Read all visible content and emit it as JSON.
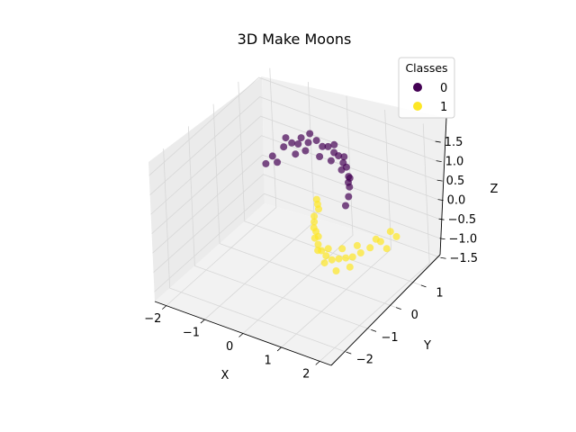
{
  "chart_data": {
    "type": "scatter",
    "projection": "3d",
    "title": "3D Make Moons",
    "xlabel": "X",
    "ylabel": "Y",
    "zlabel": "Z",
    "xlim": [
      -2.3,
      2.3
    ],
    "ylim": [
      -2.6,
      1.8
    ],
    "zlim": [
      -1.75,
      1.85
    ],
    "xticks": [
      "−2",
      "−1",
      "0",
      "1",
      "2"
    ],
    "yticks": [
      "−2",
      "−1",
      "0",
      "1"
    ],
    "zticks": [
      "−1.5",
      "−1.0",
      "−0.5",
      "0.0",
      "0.5",
      "1.0",
      "1.5"
    ],
    "grid": true,
    "legend": {
      "title": "Classes",
      "placement": "top-right",
      "entries": [
        {
          "label": "0",
          "color": "#440154"
        },
        {
          "label": "1",
          "color": "#fde725"
        }
      ]
    },
    "marker_alpha": 0.7,
    "series": [
      {
        "name": "0",
        "color": "#440154",
        "shape": "upper moon",
        "points": [
          [
            -1.0,
            0.3,
            0.8
          ],
          [
            -0.9,
            0.6,
            0.9
          ],
          [
            -0.75,
            0.7,
            1.0
          ],
          [
            -0.6,
            0.85,
            1.1
          ],
          [
            -0.45,
            0.9,
            1.0
          ],
          [
            -0.3,
            1.0,
            1.05
          ],
          [
            -0.15,
            1.0,
            0.95
          ],
          [
            0.0,
            1.0,
            1.0
          ],
          [
            0.15,
            1.0,
            0.9
          ],
          [
            0.3,
            0.95,
            0.9
          ],
          [
            0.45,
            0.9,
            0.8
          ],
          [
            0.6,
            0.8,
            0.8
          ],
          [
            0.75,
            0.65,
            0.7
          ],
          [
            0.9,
            0.45,
            0.6
          ],
          [
            1.0,
            0.25,
            0.5
          ],
          [
            -0.95,
            0.4,
            0.6
          ],
          [
            -0.7,
            0.75,
            0.7
          ],
          [
            -0.5,
            0.85,
            0.8
          ],
          [
            -0.2,
            0.95,
            0.7
          ],
          [
            0.1,
            0.95,
            0.7
          ],
          [
            0.4,
            0.9,
            0.6
          ],
          [
            0.7,
            0.7,
            0.5
          ],
          [
            -0.8,
            0.55,
            1.2
          ],
          [
            -0.4,
            0.9,
            1.25
          ],
          [
            0.2,
            0.95,
            1.15
          ],
          [
            0.55,
            0.8,
            1.05
          ],
          [
            -1.05,
            0.1,
            0.7
          ],
          [
            1.05,
            0.05,
            0.4
          ],
          [
            -0.65,
            0.8,
            0.95
          ],
          [
            0.85,
            0.55,
            0.75
          ]
        ]
      },
      {
        "name": "1",
        "color": "#fde725",
        "shape": "lower moon",
        "points": [
          [
            0.0,
            0.5,
            -0.2
          ],
          [
            0.1,
            0.2,
            -0.3
          ],
          [
            0.25,
            -0.05,
            -0.4
          ],
          [
            0.4,
            -0.25,
            -0.5
          ],
          [
            0.55,
            -0.35,
            -0.55
          ],
          [
            0.7,
            -0.45,
            -0.6
          ],
          [
            0.85,
            -0.5,
            -0.65
          ],
          [
            1.0,
            -0.5,
            -0.7
          ],
          [
            1.15,
            -0.45,
            -0.65
          ],
          [
            1.3,
            -0.4,
            -0.6
          ],
          [
            1.45,
            -0.35,
            -0.55
          ],
          [
            1.6,
            -0.25,
            -0.45
          ],
          [
            1.75,
            -0.1,
            -0.35
          ],
          [
            1.9,
            0.1,
            -0.25
          ],
          [
            2.0,
            0.35,
            -0.1
          ],
          [
            0.05,
            0.4,
            0.0
          ],
          [
            0.3,
            -0.1,
            -0.2
          ],
          [
            0.6,
            -0.4,
            -0.3
          ],
          [
            0.95,
            -0.55,
            -0.4
          ],
          [
            1.25,
            -0.45,
            -0.35
          ],
          [
            1.55,
            -0.3,
            -0.25
          ],
          [
            1.85,
            0.0,
            -0.15
          ],
          [
            0.2,
            0.1,
            -0.6
          ],
          [
            0.8,
            -0.5,
            -0.85
          ],
          [
            1.4,
            -0.4,
            -0.8
          ],
          [
            1.95,
            0.25,
            -0.5
          ],
          [
            -0.05,
            0.6,
            -0.4
          ],
          [
            2.05,
            0.5,
            -0.3
          ],
          [
            1.1,
            -0.5,
            -0.95
          ],
          [
            0.5,
            -0.3,
            -0.75
          ]
        ]
      }
    ]
  }
}
